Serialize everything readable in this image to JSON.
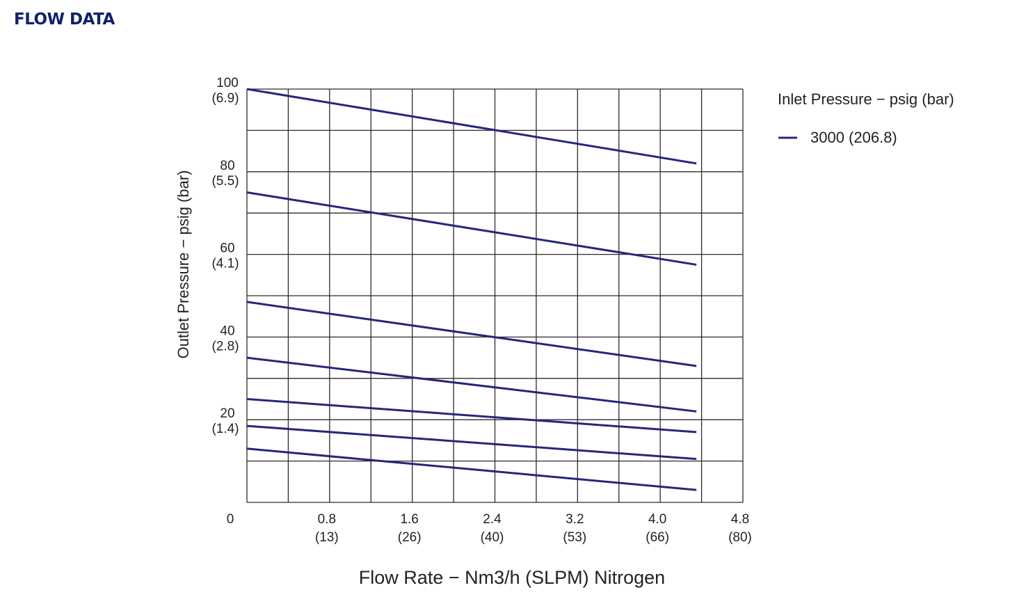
{
  "header": {
    "title": "FLOW DATA"
  },
  "colors": {
    "heading": "#10226b",
    "series": "#26267a",
    "grid": "#2b2b2b"
  },
  "chart_data": {
    "type": "line",
    "xlabel": "Flow Rate  −  Nm3/h (SLPM) Nitrogen",
    "ylabel": "Outlet Pressure  −  psig (bar)",
    "xlim": [
      0,
      4.8
    ],
    "ylim": [
      0,
      100
    ],
    "grid": true,
    "x_ticks": [
      {
        "value": 0,
        "label": "0",
        "sub": ""
      },
      {
        "value": 0.8,
        "label": "0.8",
        "sub": "(13)"
      },
      {
        "value": 1.6,
        "label": "1.6",
        "sub": "(26)"
      },
      {
        "value": 2.4,
        "label": "2.4",
        "sub": "(40)"
      },
      {
        "value": 3.2,
        "label": "3.2",
        "sub": "(53)"
      },
      {
        "value": 4.0,
        "label": "4.0",
        "sub": "(66)"
      },
      {
        "value": 4.8,
        "label": "4.8",
        "sub": "(80)"
      }
    ],
    "y_ticks": [
      {
        "value": 100,
        "label": "100",
        "sub": "(6.9)"
      },
      {
        "value": 80,
        "label": "80",
        "sub": "(5.5)"
      },
      {
        "value": 60,
        "label": "60",
        "sub": "(4.1)"
      },
      {
        "value": 40,
        "label": "40",
        "sub": "(2.8)"
      },
      {
        "value": 20,
        "label": "20",
        "sub": "(1.4)"
      }
    ],
    "legend": {
      "title": "Inlet Pressure  −  psig (bar)",
      "position": "top-right",
      "entries": [
        "3000 (206.8)"
      ]
    },
    "series": [
      {
        "x": [
          0,
          4.35
        ],
        "y": [
          100,
          82
        ]
      },
      {
        "x": [
          0,
          4.35
        ],
        "y": [
          75,
          57.5
        ]
      },
      {
        "x": [
          0,
          4.35
        ],
        "y": [
          48.5,
          33
        ]
      },
      {
        "x": [
          0,
          4.35
        ],
        "y": [
          35,
          22
        ]
      },
      {
        "x": [
          0,
          4.35
        ],
        "y": [
          25,
          17
        ]
      },
      {
        "x": [
          0,
          4.35
        ],
        "y": [
          18.5,
          10.5
        ]
      },
      {
        "x": [
          0,
          4.35
        ],
        "y": [
          13,
          3
        ]
      }
    ]
  }
}
